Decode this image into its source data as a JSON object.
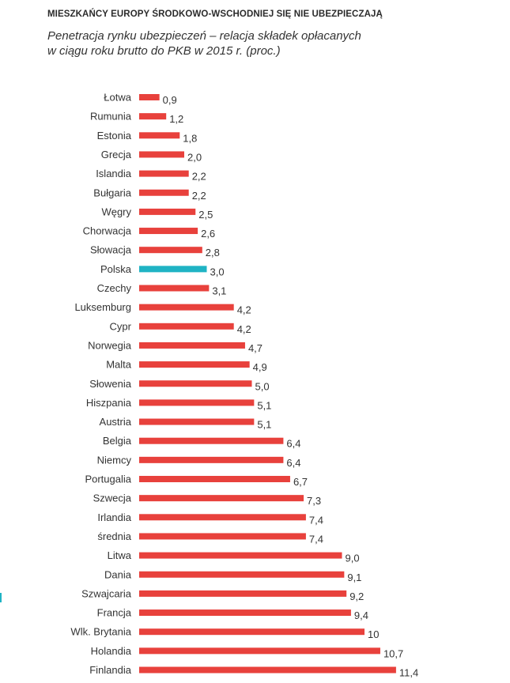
{
  "header": {
    "title": "MIESZKAŃCY EUROPY ŚRODKOWO-WSCHODNIEJ SIĘ NIE UBEZPIECZAJĄ",
    "subtitle_line1": "Penetracja rynku ubezpieczeń – relacja składek opłacanych",
    "subtitle_line2": "w ciągu roku brutto do PKB w 2015 r. (proc.)"
  },
  "colors": {
    "bar": "#e8413c",
    "highlight": "#1fb3c4",
    "label": "#333333"
  },
  "chart_data": {
    "type": "bar",
    "orientation": "horizontal",
    "title": "MIESZKAŃCY EUROPY ŚRODKOWO-WSCHODNIEJ SIĘ NIE UBEZPIECZAJĄ",
    "subtitle": "Penetracja rynku ubezpieczeń – relacja składek opłacanych w ciągu roku brutto do PKB w 2015 r. (proc.)",
    "categories": [
      "Łotwa",
      "Rumunia",
      "Estonia",
      "Grecja",
      "Islandia",
      "Bułgaria",
      "Węgry",
      "Chorwacja",
      "Słowacja",
      "Polska",
      "Czechy",
      "Luksemburg",
      "Cypr",
      "Norwegia",
      "Malta",
      "Słowenia",
      "Hiszpania",
      "Austria",
      "Belgia",
      "Niemcy",
      "Portugalia",
      "Szwecja",
      "Irlandia",
      "średnia",
      "Litwa",
      "Dania",
      "Szwajcaria",
      "Francja",
      "Wlk. Brytania",
      "Holandia",
      "Finlandia"
    ],
    "values": [
      0.9,
      1.2,
      1.8,
      2.0,
      2.2,
      2.2,
      2.5,
      2.6,
      2.8,
      3.0,
      3.1,
      4.2,
      4.2,
      4.7,
      4.9,
      5.0,
      5.1,
      5.1,
      6.4,
      6.4,
      6.7,
      7.3,
      7.4,
      7.4,
      9.0,
      9.1,
      9.2,
      9.4,
      10,
      10.7,
      11.4
    ],
    "value_labels": [
      "0,9",
      "1,2",
      "1,8",
      "2,0",
      "2,2",
      "2,2",
      "2,5",
      "2,6",
      "2,8",
      "3,0",
      "3,1",
      "4,2",
      "4,2",
      "4,7",
      "4,9",
      "5,0",
      "5,1",
      "5,1",
      "6,4",
      "6,4",
      "6,7",
      "7,3",
      "7,4",
      "7,4",
      "9,0",
      "9,1",
      "9,2",
      "9,4",
      "10",
      "10,7",
      "11,4"
    ],
    "highlight_category": "Polska",
    "grid": false,
    "legend": "none"
  }
}
